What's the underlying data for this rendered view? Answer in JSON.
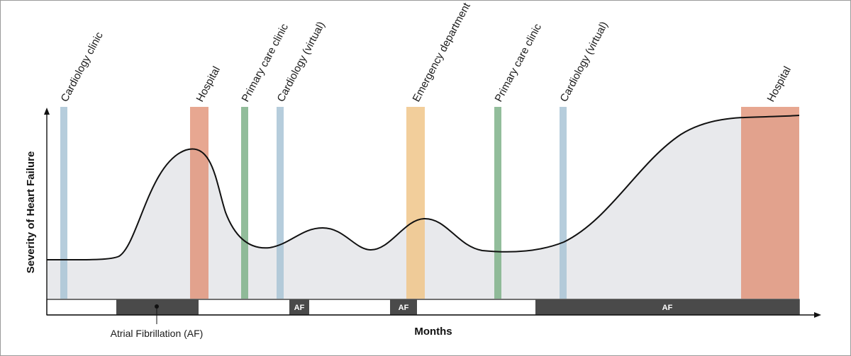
{
  "y_axis_title": "Severity of Heart Failure",
  "x_axis_title": "Months",
  "legend": {
    "label": "Atrial Fibrillation (AF)"
  },
  "colors": {
    "cardiology": "#a9c4d6",
    "hospital": "#e08e72",
    "primary_care": "#7fb28a",
    "emergency": "#f0c68a",
    "curve_fill": "#e8e9ec",
    "af_bar": "#4a4a4a"
  },
  "encounters": [
    {
      "label": "Cardiology clinic",
      "type": "cardiology"
    },
    {
      "label": "Hospital",
      "type": "hospital"
    },
    {
      "label": "Primary care clinic",
      "type": "primary_care"
    },
    {
      "label": "Cardiology (virtual)",
      "type": "cardiology"
    },
    {
      "label": "Emergency department",
      "type": "emergency"
    },
    {
      "label": "Primary care clinic",
      "type": "primary_care"
    },
    {
      "label": "Cardiology (virtual)",
      "type": "cardiology"
    },
    {
      "label": "Hospital",
      "type": "hospital"
    }
  ],
  "af_episodes": [
    {
      "label": ""
    },
    {
      "label": "AF"
    },
    {
      "label": "AF"
    },
    {
      "label": "AF"
    }
  ]
}
